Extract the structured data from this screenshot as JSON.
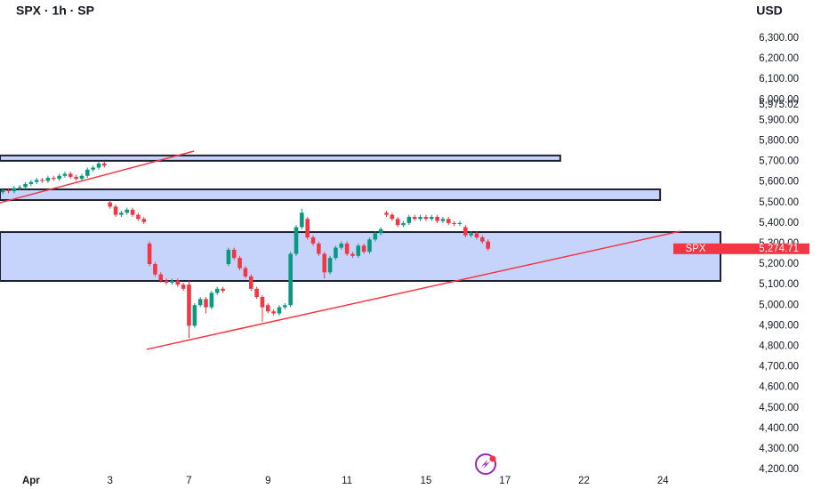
{
  "chart_data": {
    "type": "candlestick",
    "title": "SPX · 1h · SP",
    "currency": "USD",
    "up_color": "#089981",
    "down_color": "#f23645",
    "x": [
      -5,
      -4,
      -3,
      -2,
      -1,
      0,
      1,
      2,
      3,
      4,
      5,
      6,
      7,
      8,
      9,
      10,
      11,
      12,
      13,
      14,
      15,
      16,
      17,
      18,
      19,
      20,
      21,
      22,
      23,
      24,
      25,
      26,
      27,
      28,
      29,
      30,
      31,
      32,
      33,
      34,
      35,
      36,
      37,
      38,
      39,
      40,
      41,
      42,
      43,
      44,
      45,
      46,
      47,
      48,
      49,
      50,
      51,
      52,
      53,
      54,
      55,
      56,
      57,
      58,
      59,
      60,
      61,
      62,
      63,
      64,
      65,
      66,
      67,
      68,
      69,
      70,
      71,
      72,
      73,
      74,
      75,
      76,
      77,
      78,
      79,
      80,
      81
    ],
    "open": [
      5550,
      5560,
      5555,
      5570,
      5575,
      5590,
      5600,
      5610,
      5605,
      5620,
      5615,
      5630,
      5640,
      5625,
      5615,
      5630,
      5660,
      5670,
      5690,
      5500,
      5480,
      5440,
      5450,
      5465,
      5440,
      5420,
      5300,
      5200,
      5150,
      5120,
      5110,
      5120,
      5100,
      5100,
      4900,
      5000,
      5030,
      4990,
      5060,
      5080,
      5200,
      5270,
      5230,
      5180,
      5140,
      5080,
      5040,
      5000,
      4970,
      4960,
      4990,
      5000,
      5250,
      5380,
      5420,
      5330,
      5300,
      5250,
      5160,
      5230,
      5280,
      5300,
      5250,
      5240,
      5290,
      5260,
      5320,
      5350,
      5450,
      5440,
      5420,
      5390,
      5400,
      5430,
      5420,
      5430,
      5420,
      5430,
      5410,
      5420,
      5400,
      5395,
      5380,
      5340,
      5350,
      5330,
      5310
    ],
    "high": [
      5570,
      5570,
      5580,
      5585,
      5600,
      5610,
      5620,
      5620,
      5630,
      5630,
      5640,
      5650,
      5650,
      5635,
      5640,
      5670,
      5680,
      5700,
      5700,
      5510,
      5490,
      5460,
      5475,
      5475,
      5450,
      5430,
      5310,
      5210,
      5160,
      5130,
      5130,
      5130,
      5110,
      5120,
      5010,
      5040,
      5040,
      5070,
      5090,
      5090,
      5280,
      5280,
      5240,
      5190,
      5150,
      5090,
      5050,
      5010,
      4980,
      5000,
      5010,
      5260,
      5390,
      5470,
      5430,
      5340,
      5310,
      5260,
      5240,
      5290,
      5310,
      5310,
      5260,
      5300,
      5300,
      5330,
      5360,
      5380,
      5460,
      5450,
      5430,
      5410,
      5440,
      5440,
      5440,
      5440,
      5440,
      5440,
      5430,
      5430,
      5410,
      5410,
      5390,
      5360,
      5360,
      5340,
      5320
    ],
    "low": [
      5540,
      5545,
      5545,
      5560,
      5565,
      5580,
      5590,
      5595,
      5595,
      5605,
      5605,
      5620,
      5615,
      5605,
      5605,
      5620,
      5650,
      5660,
      5670,
      5470,
      5430,
      5430,
      5440,
      5430,
      5410,
      5395,
      5190,
      5140,
      5110,
      5100,
      5100,
      5090,
      5070,
      4840,
      4890,
      4990,
      4960,
      4980,
      5050,
      5060,
      5190,
      5220,
      5170,
      5130,
      5070,
      5030,
      4920,
      4960,
      4950,
      4950,
      4980,
      4990,
      5240,
      5370,
      5320,
      5290,
      5240,
      5130,
      5150,
      5220,
      5270,
      5240,
      5230,
      5230,
      5250,
      5250,
      5310,
      5340,
      5430,
      5410,
      5380,
      5380,
      5390,
      5410,
      5410,
      5410,
      5410,
      5400,
      5400,
      5390,
      5385,
      5385,
      5330,
      5330,
      5320,
      5300,
      5265
    ],
    "close": [
      5560,
      5555,
      5570,
      5575,
      5590,
      5600,
      5610,
      5605,
      5620,
      5615,
      5630,
      5640,
      5625,
      5615,
      5630,
      5660,
      5670,
      5690,
      5680,
      5480,
      5440,
      5450,
      5465,
      5440,
      5420,
      5405,
      5200,
      5150,
      5120,
      5110,
      5120,
      5100,
      5080,
      4900,
      5000,
      5030,
      4990,
      5060,
      5080,
      5070,
      5270,
      5230,
      5180,
      5140,
      5080,
      5040,
      4990,
      4970,
      4960,
      4990,
      5000,
      5250,
      5380,
      5450,
      5330,
      5300,
      5250,
      5160,
      5230,
      5280,
      5300,
      5250,
      5240,
      5290,
      5260,
      5320,
      5350,
      5370,
      5440,
      5420,
      5390,
      5400,
      5430,
      5420,
      5430,
      5420,
      5430,
      5410,
      5420,
      5400,
      5395,
      5400,
      5340,
      5350,
      5330,
      5310,
      5275
    ],
    "xlim": [
      -5.5,
      122.2
    ],
    "xticks": [
      {
        "value": 0,
        "label": "Apr"
      },
      {
        "value": 14,
        "label": "3"
      },
      {
        "value": 28,
        "label": "7"
      },
      {
        "value": 42,
        "label": "9"
      },
      {
        "value": 56,
        "label": "11"
      },
      {
        "value": 70,
        "label": "15"
      },
      {
        "value": 84,
        "label": "17"
      },
      {
        "value": 98,
        "label": "22"
      },
      {
        "value": 112,
        "label": "24"
      }
    ],
    "ylim": [
      4105,
      6486
    ],
    "yticks": [
      {
        "value": 4200,
        "label": "4,200.00"
      },
      {
        "value": 4300,
        "label": "4,300.00"
      },
      {
        "value": 4400,
        "label": "4,400.00"
      },
      {
        "value": 4500,
        "label": "4,500.00"
      },
      {
        "value": 4600,
        "label": "4,600.00"
      },
      {
        "value": 4700,
        "label": "4,700.00"
      },
      {
        "value": 4800,
        "label": "4,800.00"
      },
      {
        "value": 4900,
        "label": "4,900.00"
      },
      {
        "value": 5000,
        "label": "5,000.00"
      },
      {
        "value": 5100,
        "label": "5,100.00"
      },
      {
        "value": 5200,
        "label": "5,200.00"
      },
      {
        "value": 5300,
        "label": "5,300.00"
      },
      {
        "value": 5400,
        "label": "5,400.00"
      },
      {
        "value": 5500,
        "label": "5,500.00"
      },
      {
        "value": 5600,
        "label": "5,600.00"
      },
      {
        "value": 5700,
        "label": "5,700.00"
      },
      {
        "value": 5800,
        "label": "5,800.00"
      },
      {
        "value": 5900,
        "label": "5,900.00"
      },
      {
        "value": 6000,
        "label": "6,000.00"
      },
      {
        "value": 6100,
        "label": "6,100.00"
      },
      {
        "value": 6200,
        "label": "6,200.00"
      },
      {
        "value": 6300,
        "label": "6,300.00"
      }
    ],
    "zones": [
      {
        "top": 5729,
        "bottom": 5703,
        "x_end": 93.8
      },
      {
        "top": 5564,
        "bottom": 5512,
        "x_end": 111.5
      },
      {
        "top": 5356,
        "bottom": 5118,
        "x_end": 122.2
      }
    ],
    "zone_color": "#c6d4fb",
    "trendlines": [
      {
        "x": [
          -5.5,
          28.9
        ],
        "y": [
          5499,
          5750
        ]
      },
      {
        "x": [
          20.5,
          115.1
        ],
        "y": [
          4785,
          5360
        ]
      }
    ],
    "trendline_color": "#f23645",
    "price_marker": {
      "value": 5975.02,
      "label": "5,975.02"
    },
    "last_price": {
      "name": "SPX",
      "value": 5274.71,
      "label": "5,274.71"
    }
  }
}
